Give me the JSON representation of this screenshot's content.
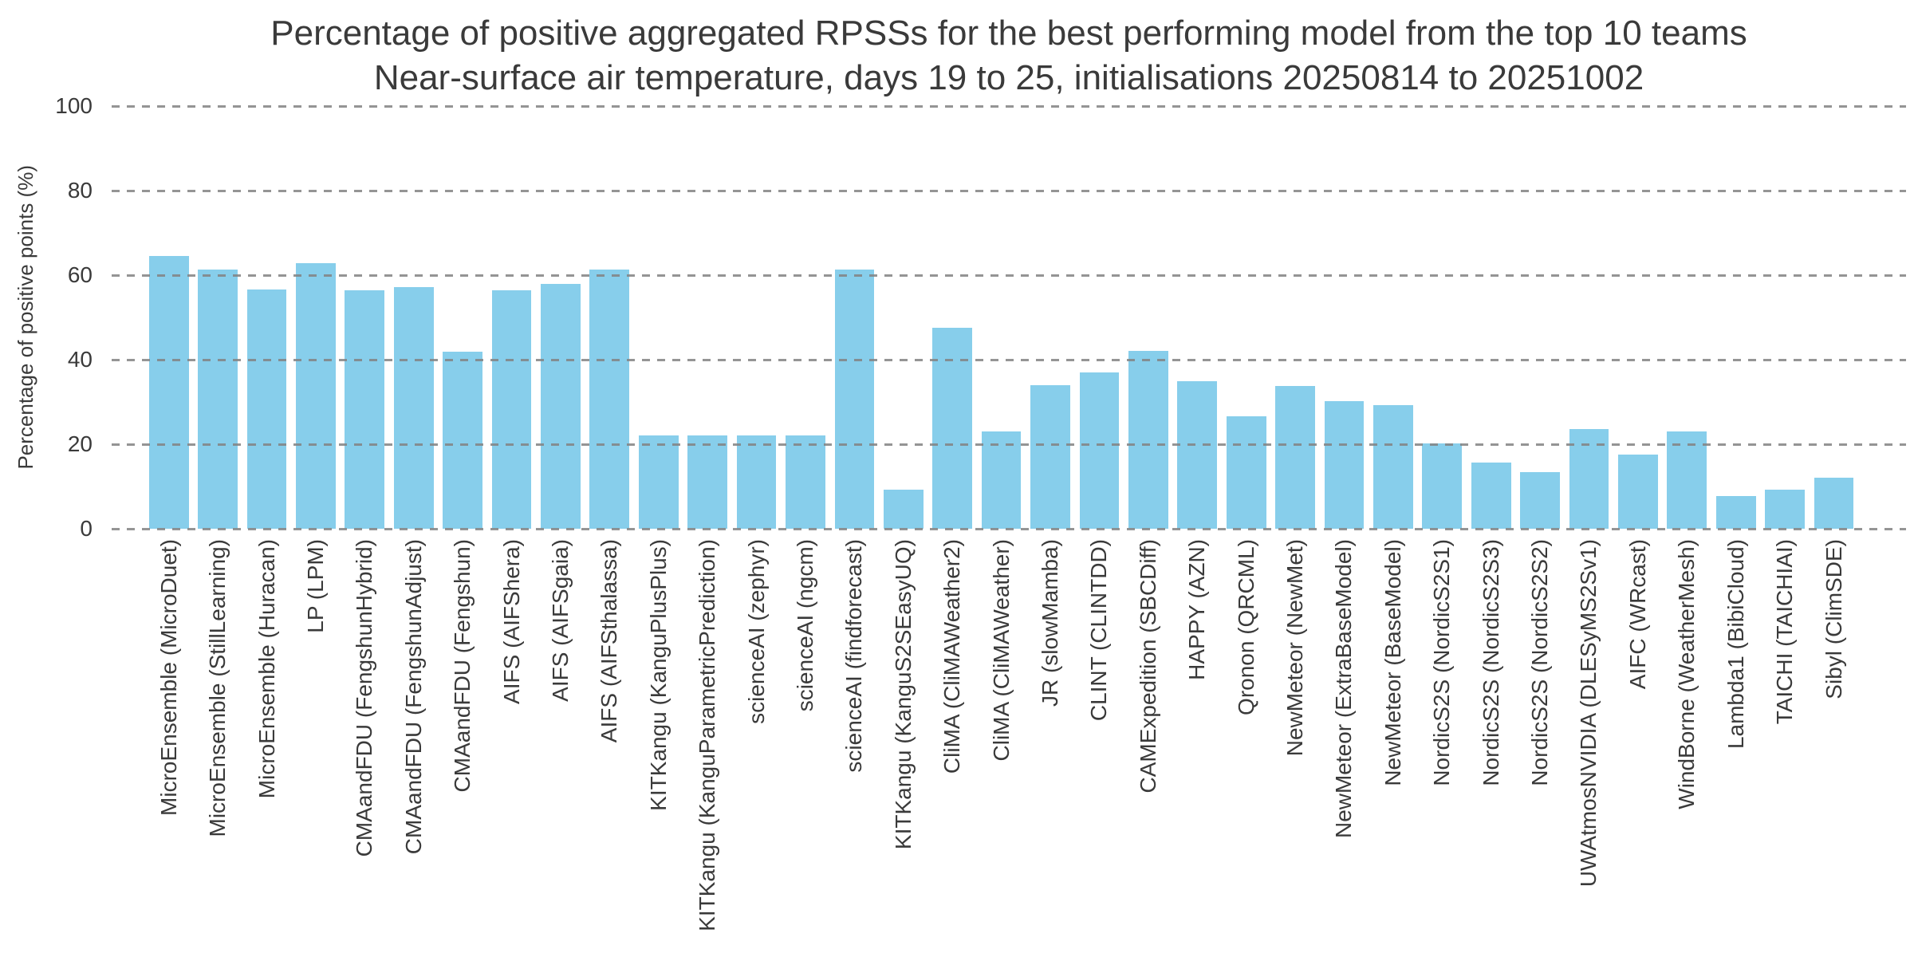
{
  "title": {
    "line1": "Percentage of positive aggregated RPSSs for the best performing model from the top 10 teams",
    "line2": "Near-surface air temperature, days 19 to 25, initialisations 20250814 to 20251002"
  },
  "y_axis": {
    "label": "Percentage of positive points (%)",
    "ticks_display_order": [
      100,
      80,
      60,
      40,
      20,
      0
    ]
  },
  "colors": {
    "bar": "#87CEEB",
    "grid": "#828282",
    "text": "#3a3a3a",
    "background": "#ffffff"
  },
  "chart_data": {
    "type": "bar",
    "title": "Percentage of positive aggregated RPSSs for the best performing model from the top 10 teams",
    "subtitle": "Near-surface air temperature, days 19 to 25, initialisations 20250814 to 20251002",
    "xlabel": "",
    "ylabel": "Percentage of positive points (%)",
    "ylim": [
      0,
      100
    ],
    "yticks": [
      0,
      20,
      40,
      60,
      80,
      100
    ],
    "grid": "horizontal-dashed-over-bars",
    "legend": "none",
    "bar_color": "#87CEEB",
    "categories": [
      "MicroEnsemble (MicroDuet)",
      "MicroEnsemble (StillLearning)",
      "MicroEnsemble (Huracan)",
      "LP (LPM)",
      "CMAandFDU (FengshunHybrid)",
      "CMAandFDU (FengshunAdjust)",
      "CMAandFDU (Fengshun)",
      "AIFS (AIFShera)",
      "AIFS (AIFSgaia)",
      "AIFS (AIFSthalassa)",
      "KITKangu (KanguPlusPlus)",
      "KITKangu (KanguParametricPrediction)",
      "scienceAI (zephyr)",
      "scienceAI (ngcm)",
      "scienceAI (findforecast)",
      "KITKangu (KanguS2SEasyUQ)",
      "CliMA (CliMAWeather2)",
      "CliMA (CliMAWeather)",
      "JR (slowMamba)",
      "CLINT (CLINTDD)",
      "CAMExpedition (SBCDiff)",
      "HAPPY (AZN)",
      "Qronon (QRCML)",
      "NewMeteor (NewMet)",
      "NewMeteor (ExtraBaseModel)",
      "NewMeteor (BaseModel)",
      "NordicS2S (NordicS2S1)",
      "NordicS2S (NordicS2S3)",
      "NordicS2S (NordicS2S2)",
      "UWAtmosNVIDIA (DLESyMS2Sv1)",
      "AIFC (WRcast)",
      "WindBorne (WeatherMesh)",
      "Lambda1 (BibiCloud)",
      "TAICHI (TAICHIAI)",
      "Sibyl (ClimSDE)"
    ],
    "values": [
      64.5,
      61.4,
      56.7,
      62.8,
      56.4,
      57.1,
      41.8,
      56.5,
      57.9,
      61.3,
      22.1,
      22.1,
      22.1,
      22.1,
      61.4,
      9.2,
      47.6,
      23.1,
      34.0,
      36.9,
      42.0,
      34.9,
      26.6,
      33.8,
      30.2,
      29.2,
      20.1,
      15.7,
      13.4,
      23.6,
      17.6,
      23.1,
      7.8,
      9.3,
      12.1
    ]
  }
}
